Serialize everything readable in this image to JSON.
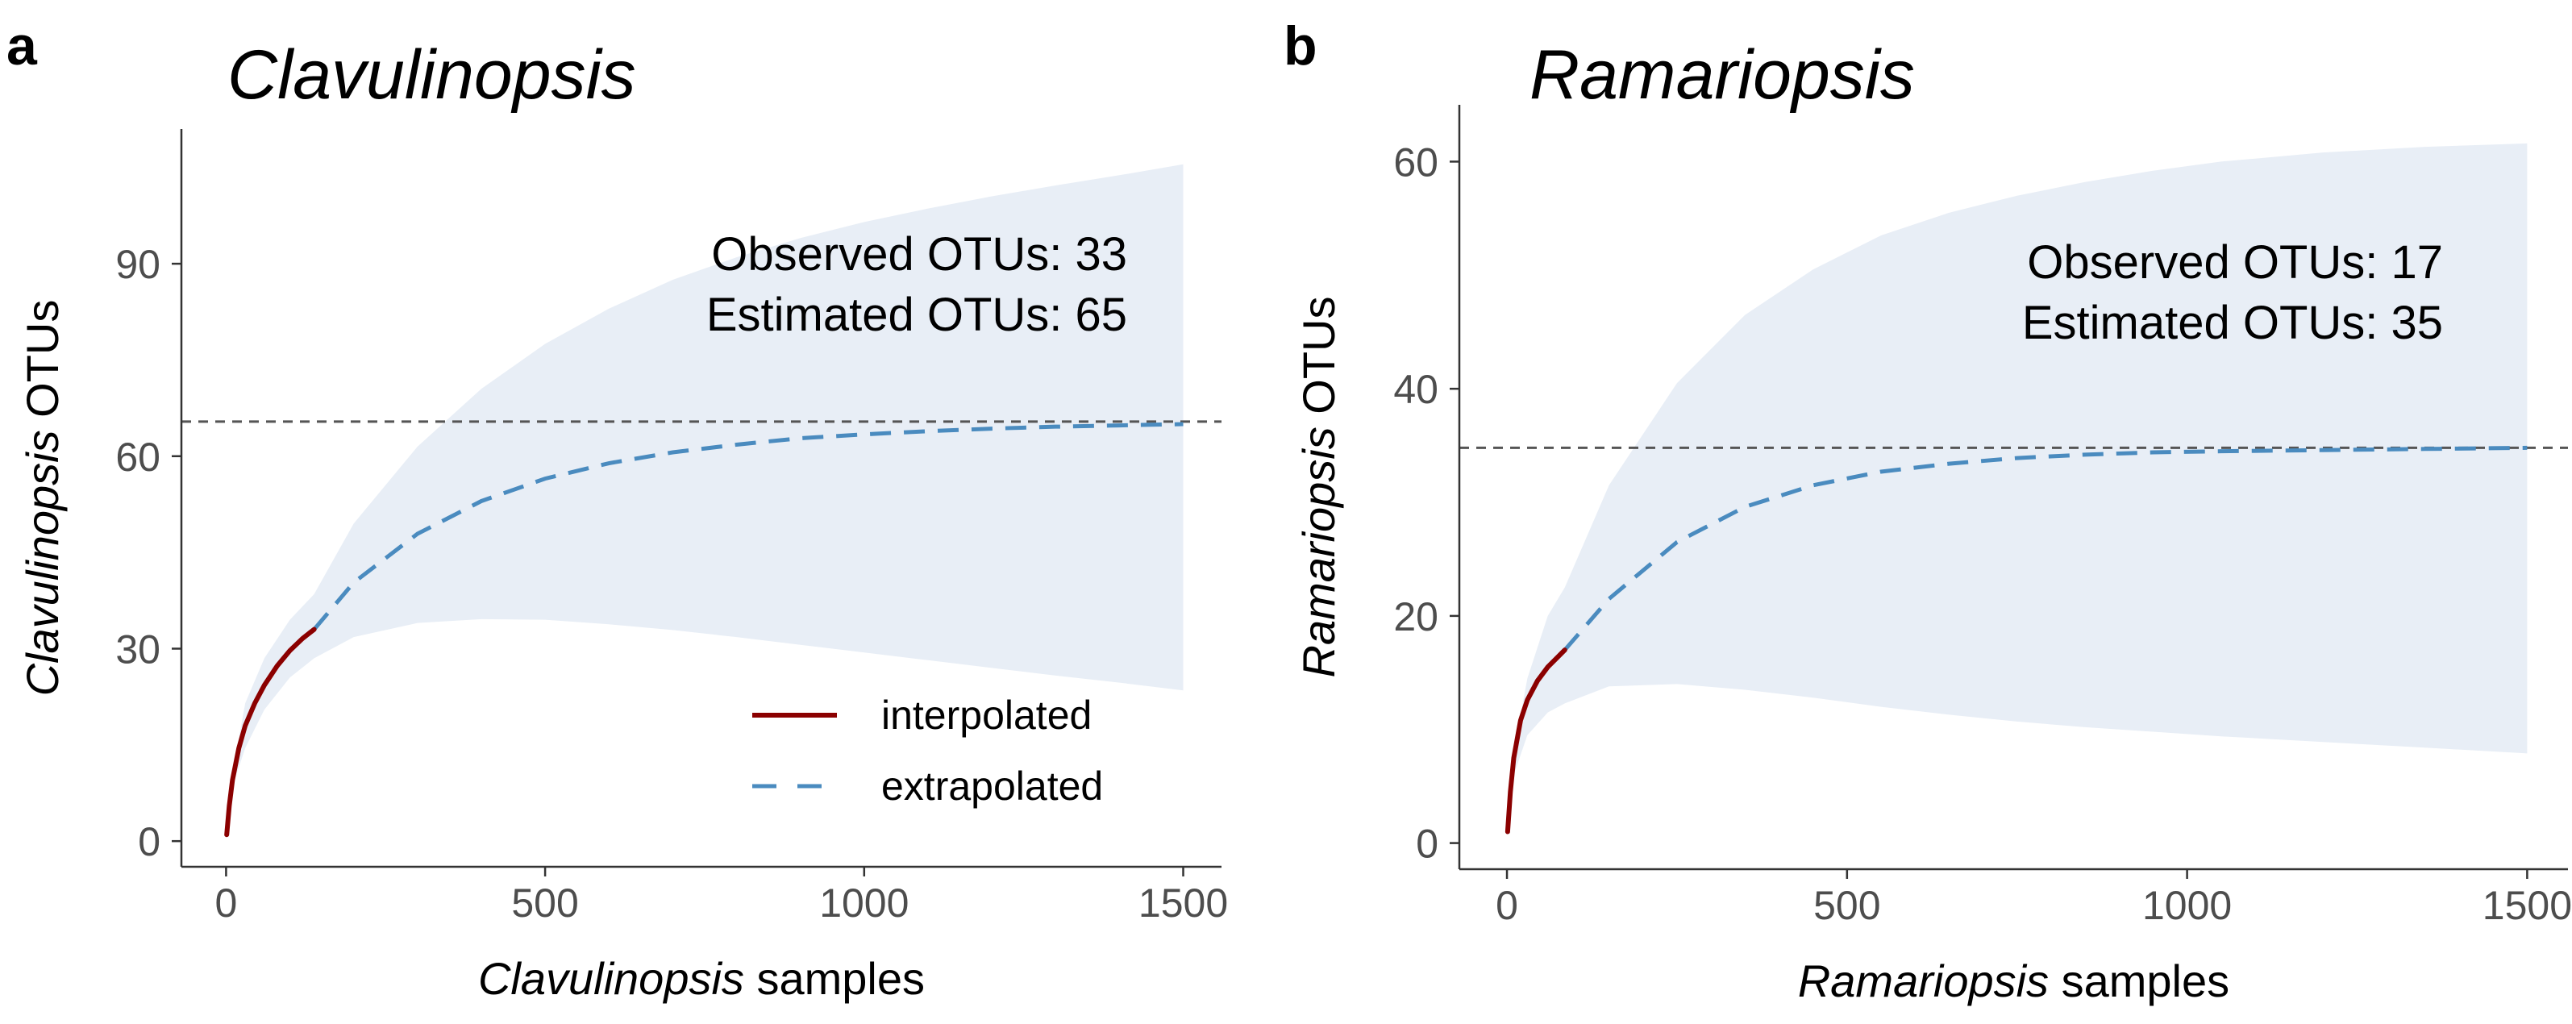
{
  "colors": {
    "interpolated": "#8b0000",
    "extrapolated": "#4a8bbf",
    "ribbon": "#e8eef6",
    "reference_line": "#555555",
    "axis": "#333333",
    "tick_label": "#4d4d4d"
  },
  "legend": {
    "interpolated": "interpolated",
    "extrapolated": "extrapolated"
  },
  "chart_data": [
    {
      "panel": "a",
      "type": "line",
      "title": "Clavulinopsis",
      "xlabel_italic": "Clavulinopsis",
      "xlabel_rest": " samples",
      "ylabel_italic": "Clavulinopsis",
      "ylabel_rest": " OTUs",
      "xlim": [
        -70,
        1560
      ],
      "ylim": [
        -4,
        111
      ],
      "xticks": [
        0,
        500,
        1000,
        1500
      ],
      "xtick_labels": [
        "0",
        "500",
        "1000",
        "1500"
      ],
      "yticks": [
        0,
        30,
        60,
        90
      ],
      "ytick_labels": [
        "0",
        "30",
        "60",
        "90"
      ],
      "observed_label": "Observed OTUs: 33",
      "estimated_label": "Estimated OTUs: 65",
      "observed": 33,
      "estimated": 65.4,
      "n_observed": 138,
      "interpolated": {
        "x": [
          1,
          5,
          10,
          20,
          30,
          45,
          60,
          80,
          100,
          120,
          138
        ],
        "y": [
          1.0,
          5.5,
          9.5,
          14.5,
          18.0,
          21.5,
          24.3,
          27.3,
          29.7,
          31.6,
          33.0
        ]
      },
      "extrapolated": {
        "x": [
          138,
          200,
          300,
          400,
          500,
          600,
          700,
          800,
          900,
          1000,
          1100,
          1200,
          1300,
          1400,
          1500
        ],
        "y": [
          33.0,
          40.3,
          47.9,
          53.0,
          56.5,
          58.9,
          60.6,
          61.8,
          62.8,
          63.4,
          63.9,
          64.3,
          64.6,
          64.8,
          65.0
        ]
      },
      "ribbon": {
        "x": [
          10,
          30,
          60,
          100,
          138,
          200,
          300,
          400,
          500,
          600,
          700,
          800,
          900,
          1000,
          1100,
          1200,
          1300,
          1400,
          1500
        ],
        "lower": [
          8.5,
          14.5,
          20.5,
          25.5,
          28.5,
          31.8,
          34.0,
          34.6,
          34.5,
          33.8,
          32.9,
          31.8,
          30.6,
          29.4,
          28.2,
          27.0,
          25.8,
          24.7,
          23.5
        ],
        "upper": [
          10.5,
          21.5,
          28.5,
          34.5,
          38.5,
          49.5,
          61.5,
          70.5,
          77.5,
          83.0,
          87.5,
          91.0,
          94.0,
          96.5,
          98.6,
          100.5,
          102.2,
          103.8,
          105.5
        ]
      },
      "show_legend": true
    },
    {
      "panel": "b",
      "type": "line",
      "title": "Ramariopsis",
      "xlabel_italic": "Ramariopsis",
      "xlabel_rest": " samples",
      "ylabel_italic": "Ramariopsis",
      "ylabel_rest": " OTUs",
      "xlim": [
        -70,
        1560
      ],
      "ylim": [
        -2.3,
        65
      ],
      "xticks": [
        0,
        500,
        1000,
        1500
      ],
      "xtick_labels": [
        "0",
        "500",
        "1000",
        "1500"
      ],
      "yticks": [
        0,
        20,
        40,
        60
      ],
      "ytick_labels": [
        "0",
        "20",
        "40",
        "60"
      ],
      "observed_label": "Observed OTUs: 17",
      "estimated_label": "Estimated OTUs: 35",
      "observed": 17,
      "estimated": 34.8,
      "n_observed": 85,
      "interpolated": {
        "x": [
          1,
          5,
          10,
          20,
          30,
          45,
          60,
          75,
          85
        ],
        "y": [
          1.0,
          4.5,
          7.5,
          10.8,
          12.6,
          14.3,
          15.5,
          16.4,
          17.0
        ]
      },
      "extrapolated": {
        "x": [
          85,
          150,
          250,
          350,
          450,
          550,
          650,
          750,
          850,
          950,
          1050,
          1200,
          1350,
          1500
        ],
        "y": [
          17.0,
          21.5,
          26.5,
          29.6,
          31.5,
          32.7,
          33.4,
          33.9,
          34.2,
          34.4,
          34.5,
          34.6,
          34.7,
          34.8
        ]
      },
      "ribbon": {
        "x": [
          10,
          30,
          60,
          85,
          150,
          250,
          350,
          450,
          550,
          650,
          750,
          850,
          950,
          1050,
          1200,
          1350,
          1500
        ],
        "lower": [
          6.0,
          9.5,
          11.5,
          12.3,
          13.8,
          14.0,
          13.5,
          12.8,
          12.0,
          11.3,
          10.7,
          10.2,
          9.8,
          9.4,
          8.9,
          8.4,
          7.9
        ],
        "upper": [
          8.0,
          14.5,
          20.0,
          22.5,
          31.5,
          40.5,
          46.5,
          50.5,
          53.5,
          55.5,
          57.0,
          58.2,
          59.2,
          60.0,
          60.8,
          61.3,
          61.6
        ]
      },
      "show_legend": false
    }
  ]
}
